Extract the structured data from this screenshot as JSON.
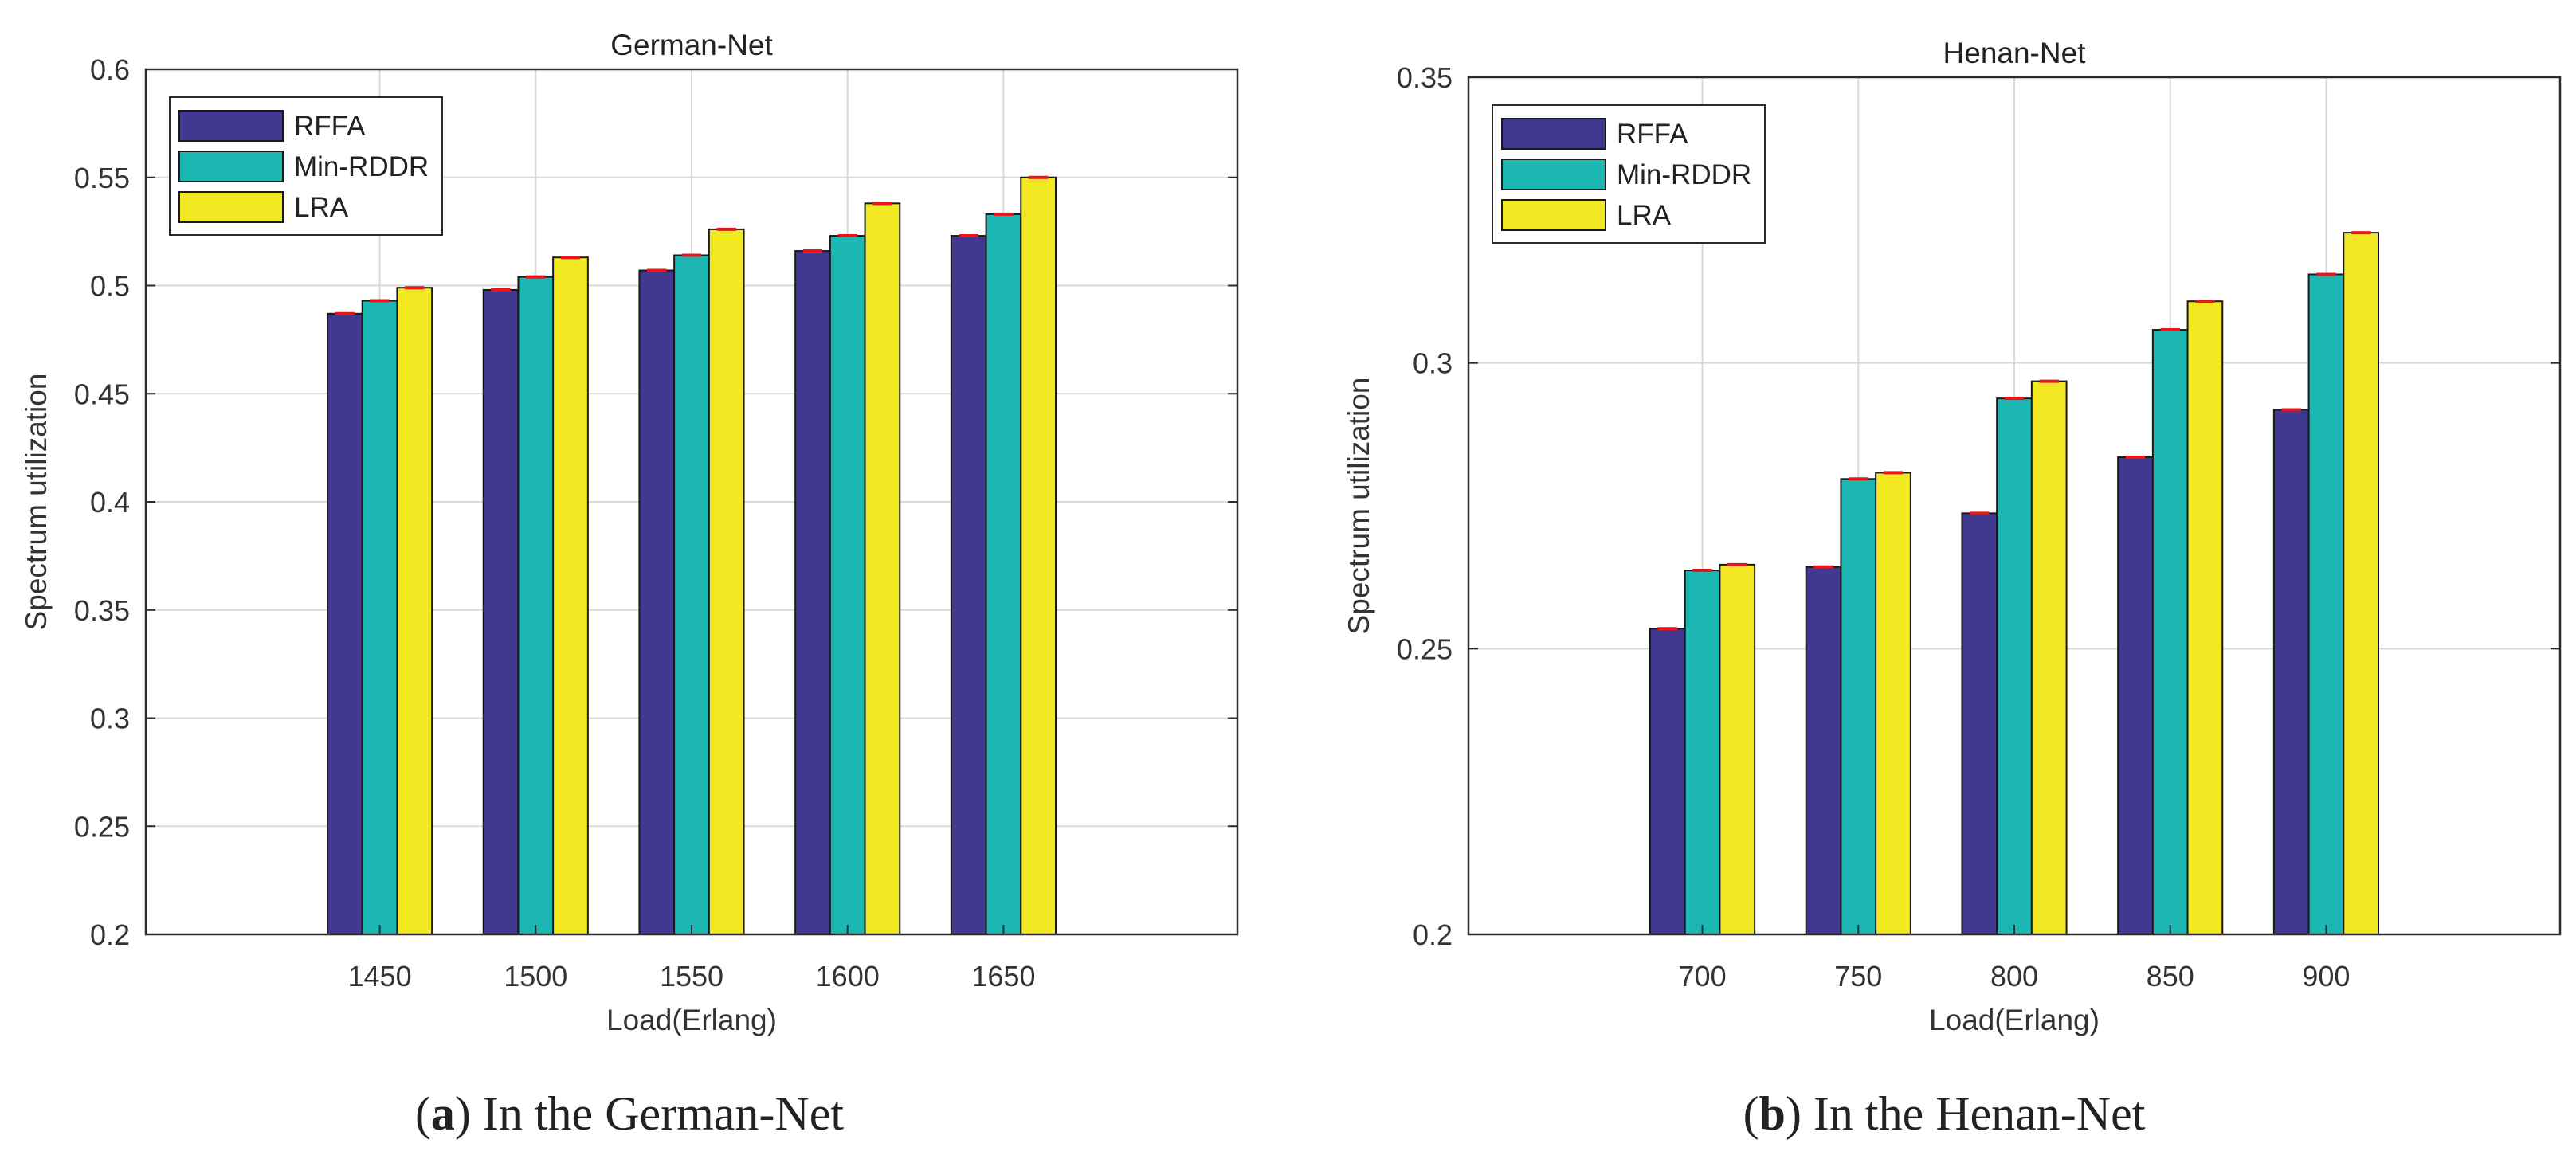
{
  "chart_data": [
    {
      "type": "bar",
      "title": "German-Net",
      "xlabel": "Load(Erlang)",
      "ylabel": "Spectrum utilization",
      "categories": [
        "1450",
        "1500",
        "1550",
        "1600",
        "1650"
      ],
      "xlim": [
        1375,
        1725
      ],
      "ylim": [
        0.2,
        0.6
      ],
      "yticks": [
        0.2,
        0.25,
        0.3,
        0.35,
        0.4,
        0.45,
        0.5,
        0.55,
        0.6
      ],
      "ytick_labels": [
        "0.2",
        "0.25",
        "0.3",
        "0.35",
        "0.4",
        "0.45",
        "0.5",
        "0.55",
        "0.6"
      ],
      "grid": true,
      "legend_position": "top-left",
      "series": [
        {
          "name": "RFFA",
          "color": "#41398f",
          "values": [
            0.487,
            0.498,
            0.507,
            0.516,
            0.523
          ]
        },
        {
          "name": "Min-RDDR",
          "color": "#1cb7b3",
          "values": [
            0.493,
            0.504,
            0.514,
            0.523,
            0.533
          ]
        },
        {
          "name": "LRA",
          "color": "#f2e922",
          "values": [
            0.499,
            0.513,
            0.526,
            0.538,
            0.55
          ]
        }
      ],
      "error_color": "#e8161c",
      "caption_label": "a",
      "caption_text": " In the German-Net"
    },
    {
      "type": "bar",
      "title": "Henan-Net",
      "xlabel": "Load(Erlang)",
      "ylabel": "Spectrum utilization",
      "categories": [
        "700",
        "750",
        "800",
        "850",
        "900"
      ],
      "xlim": [
        625,
        975
      ],
      "ylim": [
        0.2,
        0.35
      ],
      "yticks": [
        0.2,
        0.25,
        0.3,
        0.35
      ],
      "ytick_labels": [
        "0.2",
        "0.25",
        "0.3",
        "0.35"
      ],
      "grid": true,
      "legend_position": "top-left",
      "series": [
        {
          "name": "RFFA",
          "color": "#41398f",
          "values": [
            0.2535,
            0.2643,
            0.2737,
            0.2835,
            0.2918
          ]
        },
        {
          "name": "Min-RDDR",
          "color": "#1cb7b3",
          "values": [
            0.2637,
            0.2797,
            0.2938,
            0.3058,
            0.3155
          ]
        },
        {
          "name": "LRA",
          "color": "#f2e922",
          "values": [
            0.2647,
            0.2808,
            0.2968,
            0.3108,
            0.3228
          ]
        }
      ],
      "error_color": "#e8161c",
      "caption_label": "b",
      "caption_text": " In the Henan-Net"
    }
  ]
}
